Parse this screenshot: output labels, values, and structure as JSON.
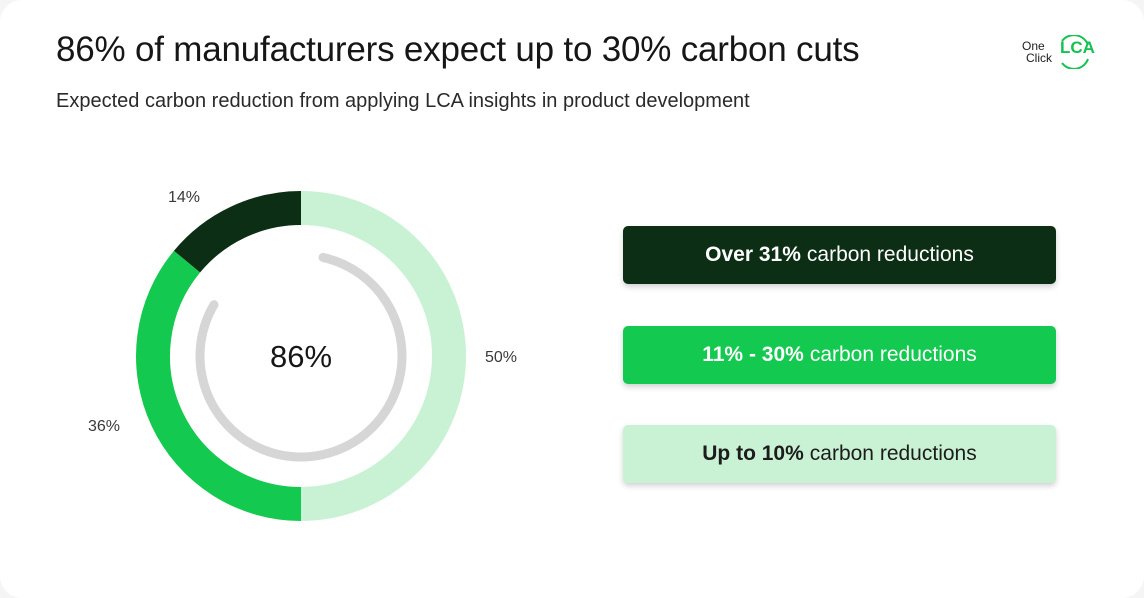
{
  "header": {
    "title": "86% of manufacturers expect up to 30% carbon cuts",
    "subtitle": "Expected carbon reduction from applying LCA insights in product development"
  },
  "logo": {
    "word1": "One",
    "word2": "Click",
    "word3": "LCA"
  },
  "chart_data": {
    "type": "pie",
    "variant": "donut",
    "center_label": "86%",
    "categories": [
      "Over 31% carbon reductions",
      "11% - 30% carbon reductions",
      "Up to 10% carbon reductions"
    ],
    "values": [
      14,
      36,
      50
    ],
    "value_labels": [
      "14%",
      "36%",
      "50%"
    ],
    "colors": [
      "#0c2e14",
      "#13c94f",
      "#c9f2d4"
    ],
    "inner_arc": {
      "value_percent": 86,
      "color": "#d6d6d6"
    },
    "legend_position": "right"
  },
  "legend": [
    {
      "bold": "Over 31%",
      "rest": "carbon reductions"
    },
    {
      "bold": "11% - 30%",
      "rest": "carbon reductions"
    },
    {
      "bold": "Up to 10%",
      "rest": "carbon reductions"
    }
  ]
}
